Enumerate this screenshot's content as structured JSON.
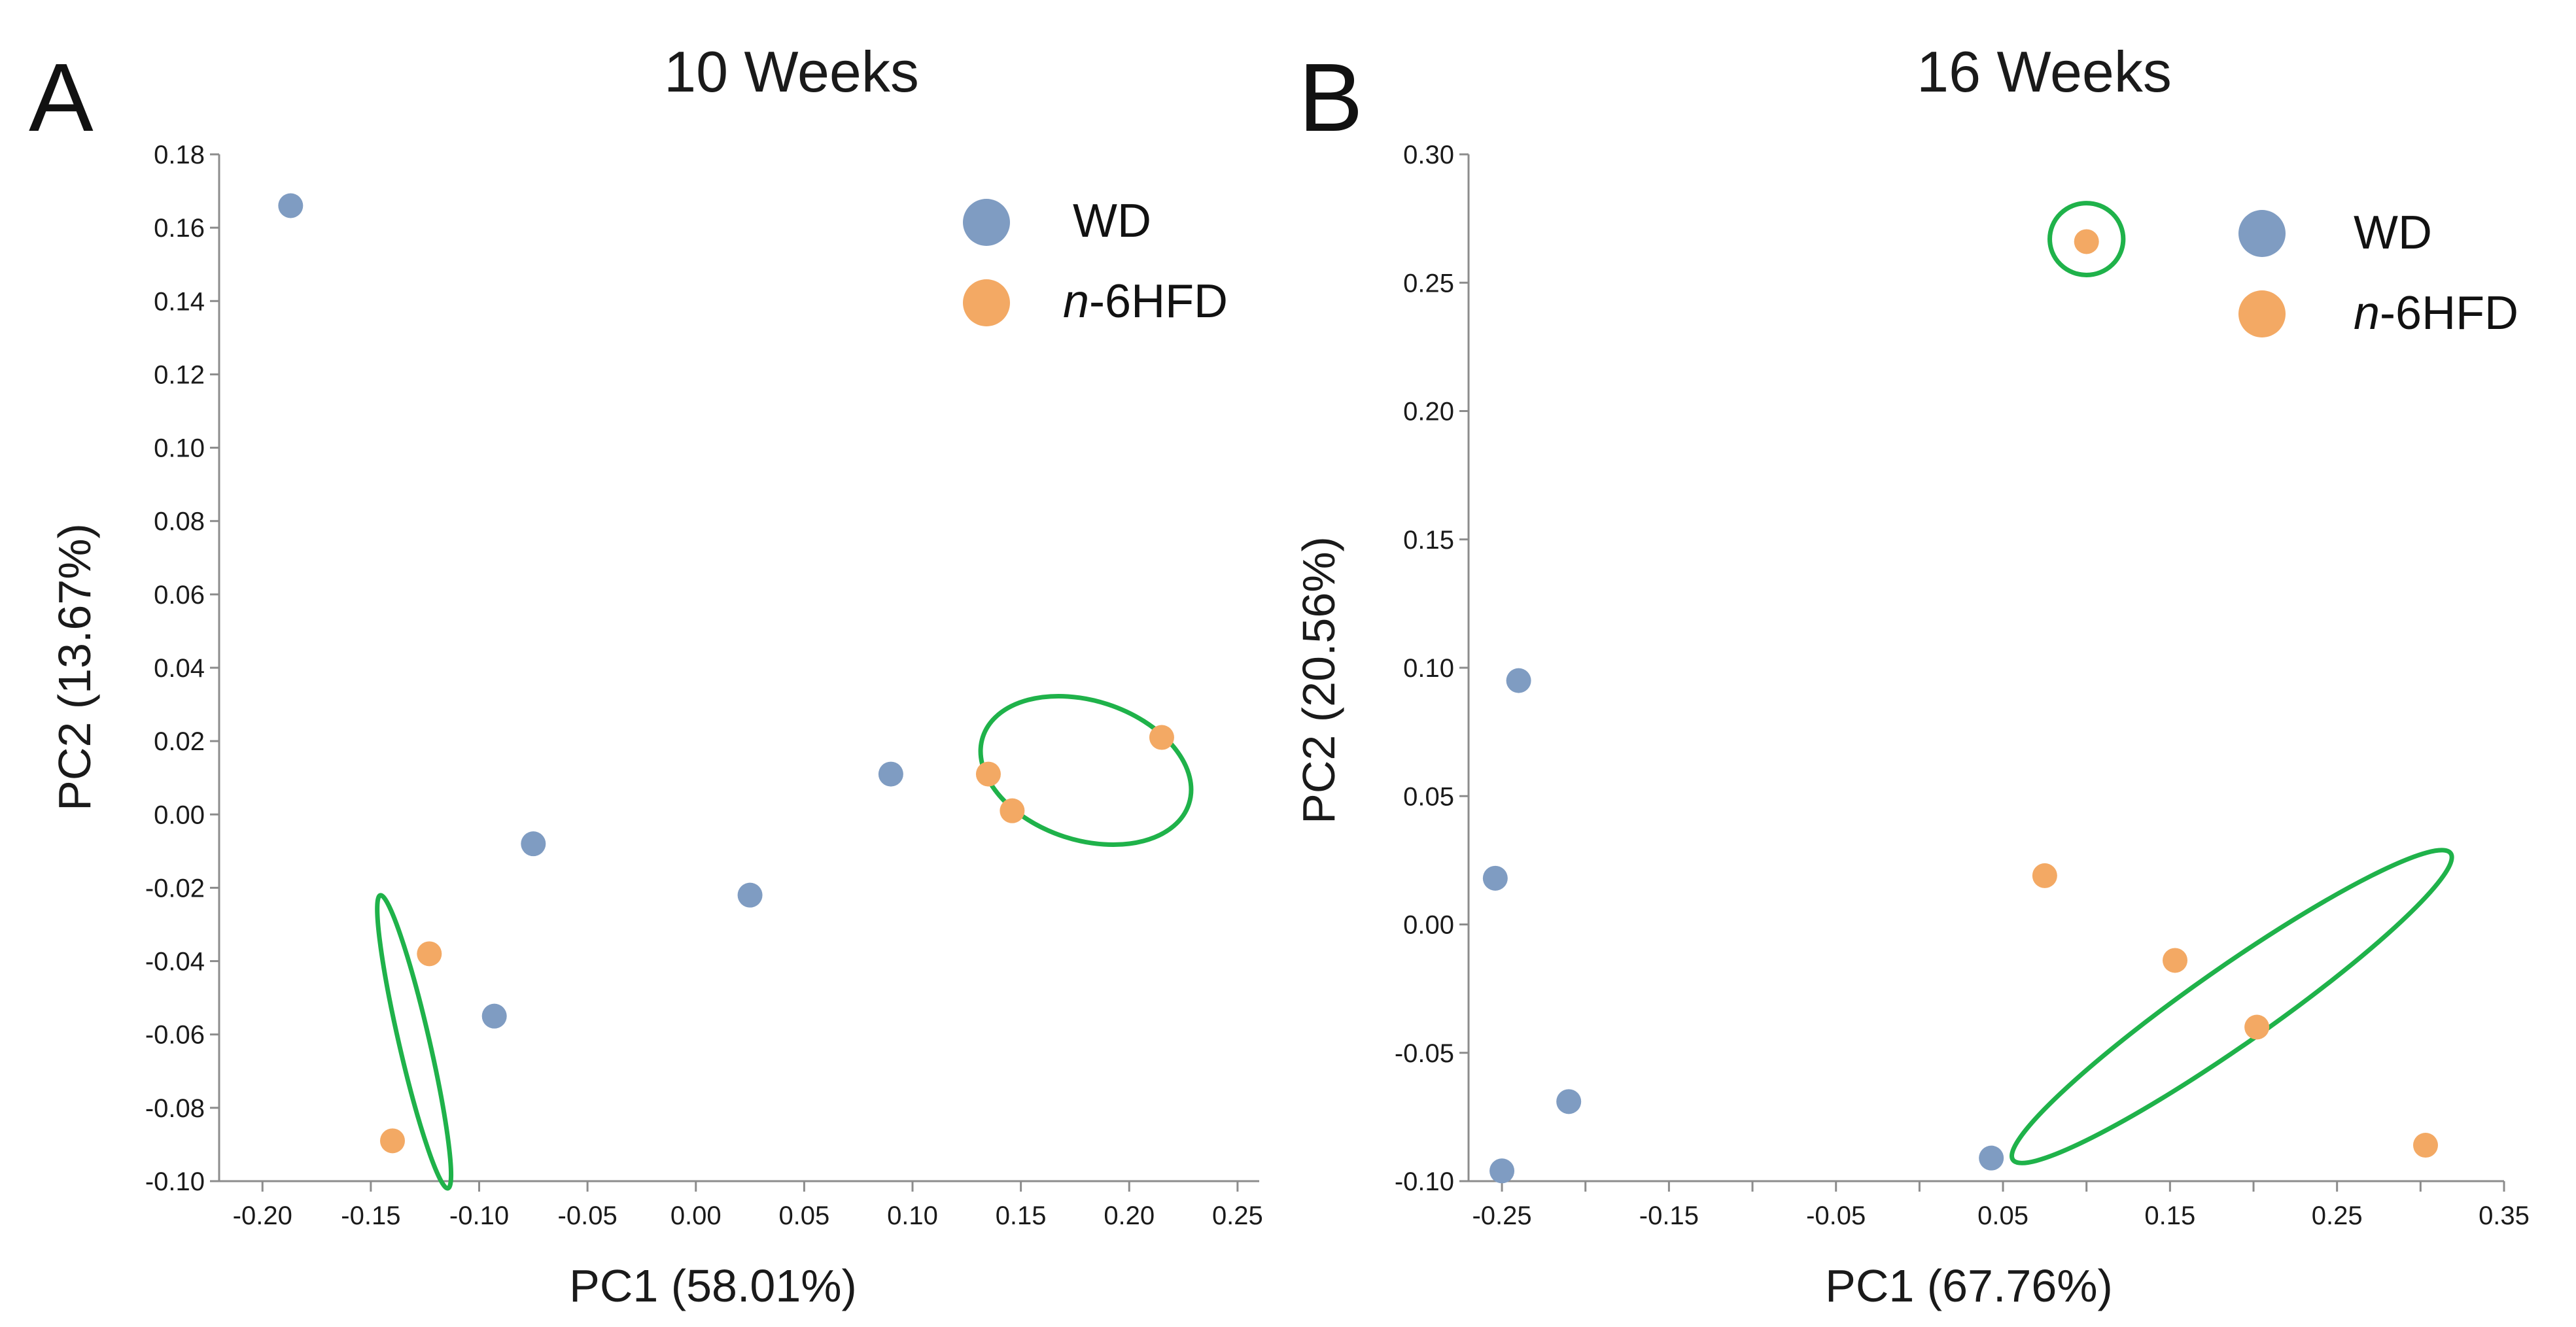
{
  "colors": {
    "WD": "#7f9cc2",
    "n6HFD": "#f3a964",
    "circle": "#1fb24a"
  },
  "chart_data": [
    {
      "panel_label": "A",
      "type": "scatter",
      "title": "10 Weeks",
      "xlabel": "PC1 (58.01%)",
      "ylabel": "PC2 (13.67%)",
      "xlim": [
        -0.22,
        0.26
      ],
      "ylim": [
        -0.1,
        0.18
      ],
      "x_ticks": [
        -0.2,
        -0.15,
        -0.1,
        -0.05,
        0.0,
        0.05,
        0.1,
        0.15,
        0.2,
        0.25
      ],
      "x_tick_labels": [
        "-0.20",
        "-0.15",
        "-0.10",
        "-0.05",
        "0.00",
        "0.05",
        "0.10",
        "0.15",
        "0.20",
        "0.25"
      ],
      "y_ticks": [
        -0.1,
        -0.08,
        -0.06,
        -0.04,
        -0.02,
        0.0,
        0.02,
        0.04,
        0.06,
        0.08,
        0.1,
        0.12,
        0.14,
        0.16,
        0.18
      ],
      "y_tick_labels": [
        "-0.10",
        "-0.08",
        "-0.06",
        "-0.04",
        "-0.02",
        "0.00",
        "0.02",
        "0.04",
        "0.06",
        "0.08",
        "0.10",
        "0.12",
        "0.14",
        "0.16",
        "0.18"
      ],
      "grid": false,
      "legend_position": "top-right",
      "series": [
        {
          "name": "WD",
          "name_italic": "",
          "name_rest": "WD",
          "points": [
            [
              -0.187,
              0.166
            ],
            [
              -0.075,
              -0.008
            ],
            [
              -0.093,
              -0.055
            ],
            [
              0.025,
              -0.022
            ],
            [
              0.09,
              0.011
            ]
          ]
        },
        {
          "name": "n-6HFD",
          "name_italic": "n",
          "name_rest": "-6HFD",
          "points": [
            [
              0.135,
              0.011
            ],
            [
              0.146,
              0.001
            ],
            [
              0.215,
              0.021
            ],
            [
              -0.123,
              -0.038
            ],
            [
              -0.14,
              -0.089
            ]
          ]
        }
      ],
      "annotations": [
        {
          "shape": "ellipse",
          "center": [
            0.18,
            0.012
          ],
          "x_radius": 0.05,
          "y_radius": 0.019,
          "angle_deg": -18
        },
        {
          "shape": "ellipse",
          "center": [
            -0.13,
            -0.062
          ],
          "x_radius": 0.007,
          "y_radius": 0.041,
          "angle_deg": 13
        }
      ]
    },
    {
      "panel_label": "B",
      "type": "scatter",
      "title": "16 Weeks",
      "xlabel": "PC1 (67.76%)",
      "ylabel": "PC2 (20.56%)",
      "xlim": [
        -0.27,
        0.35
      ],
      "ylim": [
        -0.1,
        0.3
      ],
      "x_ticks": [
        -0.25,
        -0.15,
        -0.05,
        0.05,
        0.15,
        0.25,
        0.35
      ],
      "x_tick_labels": [
        "-0.25",
        "-0.15",
        "-0.05",
        "0.05",
        "0.15",
        "0.25",
        "0.35"
      ],
      "x_minor_ticks": [
        -0.2,
        -0.1,
        0.0,
        0.1,
        0.2,
        0.3
      ],
      "y_ticks": [
        -0.1,
        -0.05,
        0.0,
        0.05,
        0.1,
        0.15,
        0.2,
        0.25,
        0.3
      ],
      "y_tick_labels": [
        "-0.10",
        "-0.05",
        "0.00",
        "0.05",
        "0.10",
        "0.15",
        "0.20",
        "0.25",
        "0.30"
      ],
      "grid": false,
      "legend_position": "top-right",
      "series": [
        {
          "name": "WD",
          "name_italic": "",
          "name_rest": "WD",
          "points": [
            [
              -0.24,
              0.095
            ],
            [
              -0.254,
              0.018
            ],
            [
              -0.21,
              -0.069
            ],
            [
              -0.25,
              -0.096
            ],
            [
              0.043,
              -0.091
            ]
          ]
        },
        {
          "name": "n-6HFD",
          "name_italic": "n",
          "name_rest": "-6HFD",
          "points": [
            [
              0.1,
              0.266
            ],
            [
              0.075,
              0.019
            ],
            [
              0.153,
              -0.014
            ],
            [
              0.202,
              -0.04
            ],
            [
              0.303,
              -0.086
            ]
          ]
        }
      ],
      "annotations": [
        {
          "shape": "ellipse",
          "center": [
            0.1,
            0.267
          ],
          "x_radius": 0.022,
          "y_radius": 0.014,
          "angle_deg": 0
        },
        {
          "shape": "ellipse",
          "center": [
            0.187,
            -0.032
          ],
          "x_radius": 0.16,
          "y_radius": 0.015,
          "angle_deg": 35
        }
      ]
    }
  ]
}
